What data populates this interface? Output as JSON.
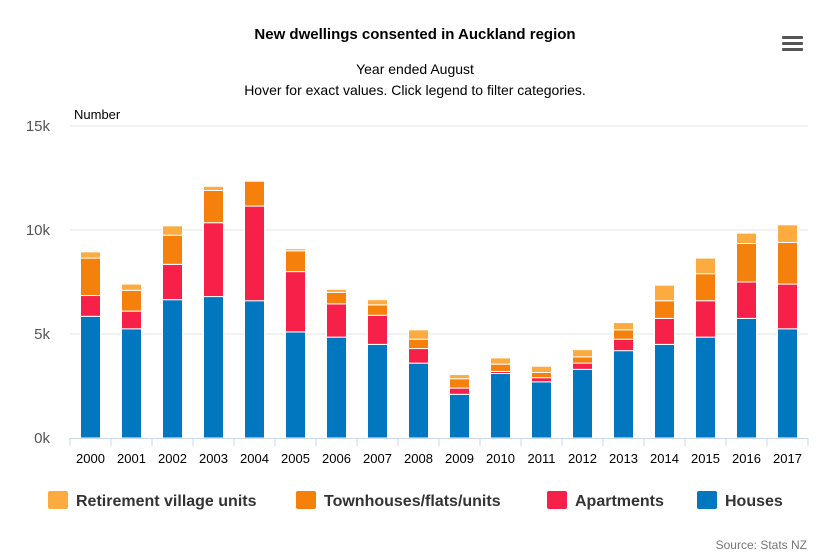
{
  "chart_data": {
    "type": "stacked-bar",
    "title": "New dwellings consented in Auckland region",
    "subtitle": [
      "Year ended August",
      "Hover for exact values. Click legend to filter categories."
    ],
    "ylabel": "Number",
    "ylim": [
      0,
      15000
    ],
    "yticks": [
      {
        "value": 0,
        "label": "0k"
      },
      {
        "value": 5000,
        "label": "5k"
      },
      {
        "value": 10000,
        "label": "10k"
      },
      {
        "value": 15000,
        "label": "15k"
      }
    ],
    "categories": [
      "2000",
      "2001",
      "2002",
      "2003",
      "2004",
      "2005",
      "2006",
      "2007",
      "2008",
      "2009",
      "2010",
      "2011",
      "2012",
      "2013",
      "2014",
      "2015",
      "2016",
      "2017"
    ],
    "series": [
      {
        "name": "Houses",
        "color": "#0077be",
        "values": [
          5850,
          5250,
          6650,
          6800,
          6600,
          5100,
          4850,
          4500,
          3600,
          2100,
          3100,
          2700,
          3300,
          4200,
          4500,
          4850,
          5750,
          5250
        ]
      },
      {
        "name": "Apartments",
        "color": "#f72048",
        "values": [
          1000,
          850,
          1700,
          3550,
          4550,
          2900,
          1600,
          1400,
          700,
          300,
          100,
          200,
          300,
          550,
          1250,
          1750,
          1750,
          2150
        ]
      },
      {
        "name": "Townhouses/flats/units",
        "color": "#f5800c",
        "values": [
          1800,
          1000,
          1400,
          1550,
          1200,
          1000,
          550,
          500,
          450,
          450,
          350,
          250,
          300,
          450,
          850,
          1300,
          1850,
          2000
        ]
      },
      {
        "name": "Retirement village units",
        "color": "#fcab40",
        "values": [
          300,
          300,
          450,
          200,
          50,
          100,
          150,
          250,
          450,
          200,
          300,
          300,
          350,
          350,
          750,
          750,
          500,
          850
        ]
      }
    ],
    "legend_order": [
      "Retirement village units",
      "Townhouses/flats/units",
      "Apartments",
      "Houses"
    ],
    "legend_position": "bottom"
  },
  "credits": "Source: Stats NZ",
  "menu_icon": "hamburger-menu-icon"
}
